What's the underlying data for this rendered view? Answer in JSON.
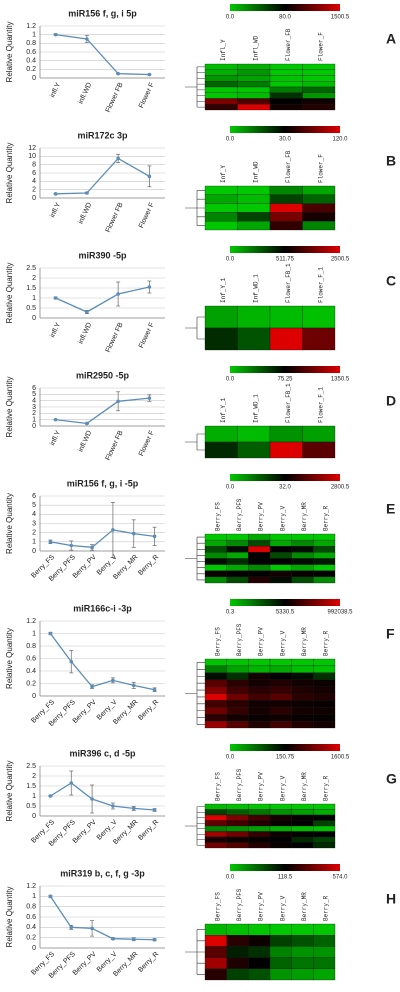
{
  "chart_data": [
    {
      "type": "line",
      "panel": "A",
      "title": "miR156 f, g, i 5p",
      "y_label": "Relative Quantity",
      "color": "#5b8db8",
      "categories": [
        "infl.Y",
        "infl.WD",
        "Flower FB",
        "Flower F"
      ],
      "values": [
        1,
        0.9,
        0.1,
        0.08
      ],
      "errors": [
        0.02,
        0.08,
        0.01,
        0.01
      ],
      "ylim": [
        0,
        1.2
      ],
      "yticks": [
        0,
        0.2,
        0.4,
        0.6,
        0.8,
        1,
        1.2
      ],
      "grid": true
    },
    {
      "type": "heatmap",
      "columns": [
        "Infl_Y",
        "Infl_WD",
        "Flower_FB",
        "Flower_F"
      ],
      "scale_ticks": [
        {
          "value": 0,
          "label": "0.0"
        },
        {
          "value": 80,
          "label": "80.0"
        },
        1500.5
      ],
      "values": [
        [
          5,
          10,
          0,
          0
        ],
        [
          10,
          20,
          0,
          0
        ],
        [
          20,
          15,
          2,
          0
        ],
        [
          40,
          30,
          0,
          5
        ],
        [
          0,
          0,
          30,
          40
        ],
        [
          0,
          5,
          60,
          20
        ],
        [
          900,
          600,
          100,
          200
        ],
        [
          400,
          1500.5,
          200,
          300
        ]
      ]
    },
    {
      "type": "line",
      "panel": "B",
      "title": "miR172c 3p",
      "y_label": "Relative Quantity",
      "color": "#5b8db8",
      "categories": [
        "infl.Y",
        "infl.WD",
        "Flower FB",
        "Flower F"
      ],
      "values": [
        1,
        1.2,
        9.5,
        5.2
      ],
      "errors": [
        0.1,
        0.2,
        1,
        2.5
      ],
      "ylim": [
        0,
        12
      ],
      "yticks": [
        0,
        2,
        4,
        6,
        8,
        10,
        12
      ],
      "grid": true
    },
    {
      "type": "heatmap",
      "columns": [
        "Inf_Y",
        "Inf_WD",
        "Flower_FB",
        "Flower_F"
      ],
      "scale_ticks": [
        {
          "value": 0,
          "label": "0.0"
        },
        {
          "value": 30,
          "label": "30.0"
        },
        {
          "value": 120,
          "label": "120.0"
        }
      ],
      "values": [
        [
          0,
          0,
          10,
          5
        ],
        [
          5,
          2,
          20,
          15
        ],
        [
          0,
          0,
          120,
          60
        ],
        [
          10,
          20,
          80,
          40
        ],
        [
          0,
          5,
          50,
          10
        ]
      ]
    },
    {
      "type": "line",
      "panel": "C",
      "title": "miR390 -5p",
      "y_label": "Relative Quantity",
      "color": "#5b8db8",
      "categories": [
        "infl.Y",
        "infl.WD",
        "Flower FB",
        "Flower F"
      ],
      "values": [
        1,
        0.3,
        1.2,
        1.55
      ],
      "errors": [
        0.05,
        0.08,
        0.6,
        0.3
      ],
      "ylim": [
        0,
        2.5
      ],
      "yticks": [
        0,
        0.5,
        1,
        1.5,
        2,
        2.5
      ],
      "grid": true
    },
    {
      "type": "heatmap",
      "columns": [
        "Inf_Y_1",
        "Inf_WD_1",
        "Flower_FB_1",
        "Flower_F_1"
      ],
      "scale_ticks": [
        {
          "value": 0,
          "label": "0.0"
        },
        511.75,
        2500.5
      ],
      "values": [
        [
          100,
          50,
          30,
          20
        ],
        [
          400,
          300,
          2500.5,
          1500
        ]
      ]
    },
    {
      "type": "line",
      "panel": "D",
      "title": "miR2950 -5p",
      "y_label": "Relative Quantity",
      "color": "#5b8db8",
      "categories": [
        "infl.Y",
        "infl.WD",
        "Flower FB",
        "Flower F"
      ],
      "values": [
        1,
        0.4,
        3.9,
        4.4
      ],
      "errors": [
        0.05,
        0.05,
        1.5,
        0.5
      ],
      "ylim": [
        0,
        6
      ],
      "yticks": [
        0,
        1,
        2,
        3,
        4,
        5,
        6
      ],
      "grid": true
    },
    {
      "type": "heatmap",
      "columns": [
        "Inf_Y_1",
        "Inf_WD_1",
        "Flower_FB_1",
        "Flower_F_1"
      ],
      "scale_ticks": [
        {
          "value": 0,
          "label": "0.0"
        },
        75.25,
        1350.5
      ],
      "values": [
        [
          10,
          5,
          20,
          15
        ],
        [
          60,
          40,
          1350.5,
          600
        ]
      ]
    },
    {
      "type": "line",
      "panel": "E",
      "title": "miR156 f, g, i -5p",
      "y_label": "Relative Quantity",
      "color": "#5b8db8",
      "categories": [
        "Berry_FS",
        "Berry_PFS",
        "Berry_PV",
        "Berry_V",
        "Berry_MR",
        "Berry_R"
      ],
      "values": [
        1,
        0.6,
        0.4,
        2.3,
        1.9,
        1.6
      ],
      "errors": [
        0.2,
        0.5,
        0.3,
        3,
        1.5,
        1
      ],
      "ylim": [
        0,
        6
      ],
      "yticks": [
        0,
        1,
        2,
        3,
        4,
        5,
        6
      ],
      "grid": true
    },
    {
      "type": "heatmap",
      "columns": [
        "Berry_FS",
        "Berry_PFS",
        "Berry_PV",
        "Berry_V",
        "Berry_MR",
        "Berry_R"
      ],
      "scale_ticks": [
        {
          "value": 0,
          "label": "0.0"
        },
        {
          "value": 32,
          "label": "32.0"
        },
        2800.5
      ],
      "values": [
        [
          0,
          0,
          5,
          0,
          0,
          0
        ],
        [
          5,
          10,
          20,
          5,
          10,
          5
        ],
        [
          20,
          30,
          2800.5,
          40,
          30,
          20
        ],
        [
          10,
          5,
          60,
          20,
          10,
          5
        ],
        [
          30,
          25,
          40,
          35,
          30,
          28
        ],
        [
          0,
          5,
          10,
          0,
          5,
          0
        ],
        [
          200,
          100,
          50,
          300,
          150,
          100
        ],
        [
          10,
          20,
          500,
          30,
          20,
          10
        ]
      ]
    },
    {
      "type": "line",
      "panel": "F",
      "title": "miR166c-i -3p",
      "y_label": "Relative Quantity",
      "color": "#5b8db8",
      "categories": [
        "Berry_FS",
        "Berry_PFS",
        "Berry_PV",
        "Berry_V",
        "Berry_MR",
        "Berry_R"
      ],
      "values": [
        1,
        0.55,
        0.15,
        0.25,
        0.17,
        0.1
      ],
      "errors": [
        0.02,
        0.18,
        0.03,
        0.04,
        0.05,
        0.03
      ],
      "ylim": [
        0,
        1.2
      ],
      "yticks": [
        0,
        0.2,
        0.4,
        0.6,
        0.8,
        1,
        1.2
      ],
      "grid": true
    },
    {
      "type": "heatmap",
      "columns": [
        "Berry_FS",
        "Berry_PFS",
        "Berry_PV",
        "Berry_V",
        "Berry_MR",
        "Berry_R"
      ],
      "scale_ticks": [
        0.3,
        5330.5,
        992038.5
      ],
      "values": [
        [
          100,
          50,
          20,
          30,
          10,
          5
        ],
        [
          2000,
          1000,
          500,
          800,
          300,
          200
        ],
        [
          5000,
          4000,
          100000,
          6000,
          5000,
          4000
        ],
        [
          400000,
          200000,
          100000,
          150000,
          90000,
          60000
        ],
        [
          600000,
          300000,
          200000,
          250000,
          150000,
          100000
        ],
        [
          992038.5,
          500000,
          300000,
          400000,
          200000,
          150000
        ],
        [
          300000,
          200000,
          80000,
          100000,
          60000,
          40000
        ],
        [
          500000,
          250000,
          100000,
          200000,
          100000,
          80000
        ],
        [
          200000,
          100000,
          50000,
          80000,
          40000,
          30000
        ],
        [
          700000,
          400000,
          150000,
          300000,
          150000,
          100000
        ]
      ]
    },
    {
      "type": "line",
      "panel": "G",
      "title": "miR396 c, d -5p",
      "y_label": "Relative Quantity",
      "color": "#5b8db8",
      "categories": [
        "Berry_FS",
        "Berry_PFS",
        "Berry_PV",
        "Berry_V",
        "Berry_MR",
        "Berry_R"
      ],
      "values": [
        1,
        1.65,
        0.85,
        0.5,
        0.38,
        0.3
      ],
      "errors": [
        0.02,
        0.6,
        0.7,
        0.15,
        0.1,
        0.07
      ],
      "ylim": [
        0,
        2.5
      ],
      "yticks": [
        0,
        0.5,
        1,
        1.5,
        2,
        2.5
      ],
      "grid": true
    },
    {
      "type": "heatmap",
      "columns": [
        "Berry_FS",
        "Berry_PFS",
        "Berry_PV",
        "Berry_V",
        "Berry_MR",
        "Berry_R"
      ],
      "scale_ticks": [
        {
          "value": 0,
          "label": "0.0"
        },
        150.75,
        1600.5
      ],
      "values": [
        [
          10,
          5,
          2,
          0,
          0,
          0
        ],
        [
          100,
          80,
          60,
          40,
          30,
          20
        ],
        [
          1600.5,
          1000,
          600,
          300,
          200,
          150
        ],
        [
          800,
          600,
          400,
          200,
          150,
          100
        ],
        [
          50,
          40,
          30,
          20,
          10,
          5
        ],
        [
          1200,
          900,
          500,
          250,
          180,
          160
        ],
        [
          300,
          250,
          200,
          150,
          120,
          100
        ],
        [
          900,
          700,
          400,
          200,
          150,
          120
        ]
      ]
    },
    {
      "type": "line",
      "panel": "H",
      "title": "miR319 b, c, f, g -3p",
      "y_label": "Relative Quantity",
      "color": "#5b8db8",
      "categories": [
        "Berry_FS",
        "Berry_PFS",
        "Berry_PV",
        "Berry_V",
        "Berry_MR",
        "Berry_R"
      ],
      "values": [
        1,
        0.4,
        0.38,
        0.18,
        0.17,
        0.16
      ],
      "errors": [
        0.02,
        0.04,
        0.15,
        0.02,
        0.03,
        0.02
      ],
      "ylim": [
        0,
        1.2
      ],
      "yticks": [
        0,
        0.2,
        0.4,
        0.6,
        0.8,
        1,
        1.2
      ],
      "grid": true
    },
    {
      "type": "heatmap",
      "columns": [
        "Berry_FS",
        "Berry_PFS",
        "Berry_PV",
        "Berry_V",
        "Berry_MR",
        "Berry_R"
      ],
      "scale_ticks": [
        {
          "value": 0,
          "label": "0.0"
        },
        118.5,
        {
          "value": 574,
          "label": "574.0"
        }
      ],
      "values": [
        [
          10,
          5,
          2,
          0,
          0,
          0
        ],
        [
          574,
          200,
          150,
          80,
          70,
          60
        ],
        [
          300,
          100,
          90,
          40,
          30,
          30
        ],
        [
          450,
          180,
          120,
          60,
          50,
          50
        ],
        [
          200,
          80,
          70,
          30,
          25,
          20
        ]
      ]
    }
  ]
}
